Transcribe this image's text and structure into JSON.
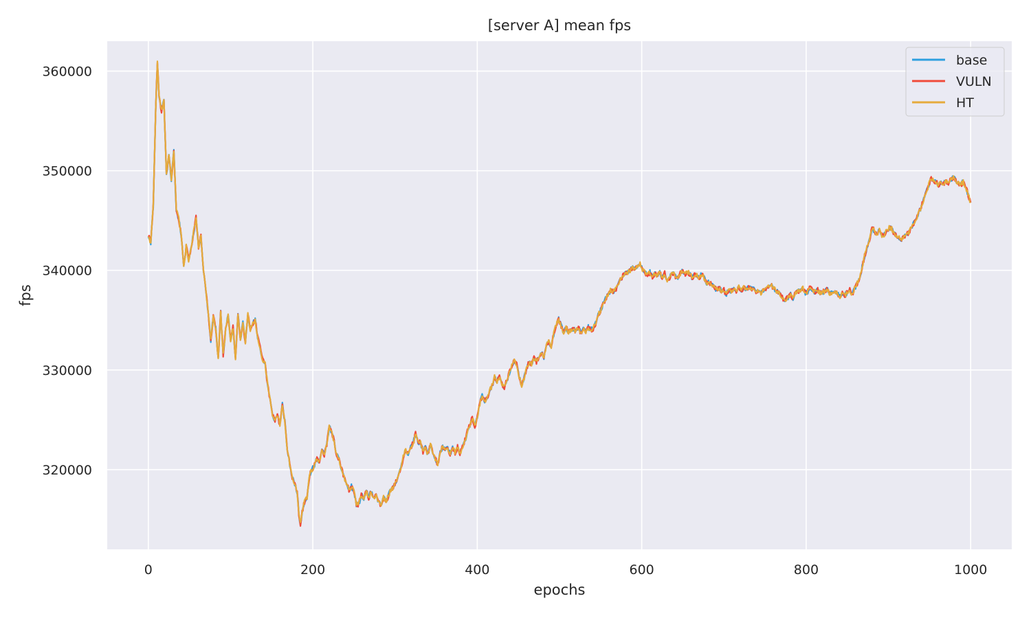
{
  "chart_data": {
    "type": "line",
    "title": "[server A] mean fps",
    "xlabel": "epochs",
    "ylabel": "fps",
    "xlim": [
      -50,
      1050
    ],
    "ylim": [
      312000,
      363000
    ],
    "x_ticks": [
      0,
      200,
      400,
      600,
      800,
      1000
    ],
    "y_ticks": [
      320000,
      330000,
      340000,
      350000,
      360000
    ],
    "grid": true,
    "legend_position": "top-right",
    "colors": {
      "background": "#eaeaf2",
      "grid": "#ffffff"
    },
    "series": [
      {
        "name": "base",
        "color": "#2e9fdf"
      },
      {
        "name": "VULN",
        "color": "#f04a3a"
      },
      {
        "name": "HT",
        "color": "#e5ab3c"
      }
    ],
    "anchor_points": [
      [
        0,
        343500
      ],
      [
        3,
        342800
      ],
      [
        6,
        346500
      ],
      [
        9,
        356500
      ],
      [
        11,
        360800
      ],
      [
        13,
        357500
      ],
      [
        16,
        356000
      ],
      [
        19,
        357200
      ],
      [
        22,
        349500
      ],
      [
        25,
        351800
      ],
      [
        28,
        349000
      ],
      [
        31,
        352000
      ],
      [
        34,
        346000
      ],
      [
        37,
        345200
      ],
      [
        40,
        343500
      ],
      [
        43,
        340200
      ],
      [
        46,
        342500
      ],
      [
        49,
        341000
      ],
      [
        52,
        342300
      ],
      [
        55,
        343800
      ],
      [
        58,
        345300
      ],
      [
        61,
        342400
      ],
      [
        64,
        343400
      ],
      [
        67,
        340000
      ],
      [
        70,
        338000
      ],
      [
        73,
        335500
      ],
      [
        76,
        333000
      ],
      [
        79,
        335300
      ],
      [
        82,
        334200
      ],
      [
        85,
        331000
      ],
      [
        88,
        335800
      ],
      [
        91,
        331500
      ],
      [
        94,
        334000
      ],
      [
        97,
        335500
      ],
      [
        100,
        333000
      ],
      [
        103,
        334300
      ],
      [
        106,
        331200
      ],
      [
        109,
        335600
      ],
      [
        112,
        333000
      ],
      [
        115,
        334800
      ],
      [
        118,
        332800
      ],
      [
        121,
        335800
      ],
      [
        124,
        334000
      ],
      [
        127,
        334700
      ],
      [
        130,
        335000
      ],
      [
        133,
        333300
      ],
      [
        136,
        332200
      ],
      [
        139,
        331000
      ],
      [
        142,
        330600
      ],
      [
        145,
        328500
      ],
      [
        148,
        327000
      ],
      [
        151,
        325400
      ],
      [
        154,
        325000
      ],
      [
        157,
        325500
      ],
      [
        160,
        324500
      ],
      [
        163,
        326500
      ],
      [
        166,
        324800
      ],
      [
        169,
        322000
      ],
      [
        172,
        320500
      ],
      [
        175,
        319200
      ],
      [
        178,
        318600
      ],
      [
        181,
        317800
      ],
      [
        183,
        315500
      ],
      [
        185,
        314500
      ],
      [
        187,
        315800
      ],
      [
        190,
        316800
      ],
      [
        193,
        317200
      ],
      [
        196,
        319400
      ],
      [
        199,
        320000
      ],
      [
        202,
        320400
      ],
      [
        205,
        321200
      ],
      [
        208,
        320800
      ],
      [
        211,
        322000
      ],
      [
        214,
        321500
      ],
      [
        217,
        322500
      ],
      [
        220,
        324300
      ],
      [
        223,
        323800
      ],
      [
        226,
        322800
      ],
      [
        229,
        321500
      ],
      [
        232,
        320900
      ],
      [
        235,
        320000
      ],
      [
        238,
        319300
      ],
      [
        241,
        318500
      ],
      [
        244,
        318000
      ],
      [
        247,
        318300
      ],
      [
        250,
        317800
      ],
      [
        253,
        316500
      ],
      [
        256,
        316500
      ],
      [
        259,
        317500
      ],
      [
        262,
        317000
      ],
      [
        265,
        317900
      ],
      [
        268,
        317200
      ],
      [
        271,
        317800
      ],
      [
        274,
        317000
      ],
      [
        277,
        317400
      ],
      [
        280,
        316800
      ],
      [
        283,
        316400
      ],
      [
        286,
        317200
      ],
      [
        289,
        316800
      ],
      [
        292,
        317400
      ],
      [
        295,
        318000
      ],
      [
        298,
        318200
      ],
      [
        301,
        318800
      ],
      [
        304,
        319500
      ],
      [
        307,
        320000
      ],
      [
        310,
        321300
      ],
      [
        313,
        322000
      ],
      [
        316,
        321600
      ],
      [
        319,
        322300
      ],
      [
        322,
        322600
      ],
      [
        325,
        323700
      ],
      [
        328,
        322800
      ],
      [
        331,
        322700
      ],
      [
        334,
        321800
      ],
      [
        337,
        322300
      ],
      [
        340,
        321500
      ],
      [
        343,
        322600
      ],
      [
        346,
        321700
      ],
      [
        349,
        321000
      ],
      [
        352,
        320600
      ],
      [
        355,
        321700
      ],
      [
        358,
        322300
      ],
      [
        361,
        321900
      ],
      [
        364,
        322200
      ],
      [
        367,
        321600
      ],
      [
        370,
        322200
      ],
      [
        373,
        321700
      ],
      [
        376,
        322300
      ],
      [
        379,
        321600
      ],
      [
        382,
        322200
      ],
      [
        385,
        322900
      ],
      [
        388,
        323800
      ],
      [
        391,
        324500
      ],
      [
        394,
        325200
      ],
      [
        397,
        324300
      ],
      [
        400,
        325200
      ],
      [
        403,
        326600
      ],
      [
        406,
        327400
      ],
      [
        409,
        326800
      ],
      [
        412,
        327200
      ],
      [
        415,
        328000
      ],
      [
        418,
        328400
      ],
      [
        421,
        329300
      ],
      [
        424,
        328800
      ],
      [
        427,
        329400
      ],
      [
        430,
        328600
      ],
      [
        433,
        328300
      ],
      [
        436,
        328900
      ],
      [
        439,
        329700
      ],
      [
        442,
        330500
      ],
      [
        445,
        331000
      ],
      [
        448,
        330500
      ],
      [
        451,
        329300
      ],
      [
        454,
        328400
      ],
      [
        457,
        329200
      ],
      [
        460,
        330200
      ],
      [
        463,
        330800
      ],
      [
        466,
        330600
      ],
      [
        469,
        331200
      ],
      [
        472,
        330800
      ],
      [
        475,
        331300
      ],
      [
        478,
        331800
      ],
      [
        481,
        331100
      ],
      [
        484,
        332400
      ],
      [
        487,
        332900
      ],
      [
        490,
        332400
      ],
      [
        493,
        333600
      ],
      [
        496,
        334600
      ],
      [
        499,
        335100
      ],
      [
        502,
        334400
      ],
      [
        505,
        333800
      ],
      [
        508,
        334200
      ],
      [
        511,
        333800
      ],
      [
        514,
        333900
      ],
      [
        517,
        334100
      ],
      [
        520,
        333900
      ],
      [
        523,
        334300
      ],
      [
        526,
        333700
      ],
      [
        529,
        334200
      ],
      [
        532,
        333800
      ],
      [
        535,
        334300
      ],
      [
        538,
        334000
      ],
      [
        541,
        334200
      ],
      [
        544,
        334700
      ],
      [
        547,
        335500
      ],
      [
        550,
        336000
      ],
      [
        553,
        336600
      ],
      [
        556,
        337100
      ],
      [
        559,
        337500
      ],
      [
        562,
        338000
      ],
      [
        565,
        337800
      ],
      [
        568,
        338100
      ],
      [
        571,
        338400
      ],
      [
        574,
        339000
      ],
      [
        577,
        339400
      ],
      [
        580,
        339700
      ],
      [
        583,
        339800
      ],
      [
        586,
        340000
      ],
      [
        589,
        340300
      ],
      [
        592,
        340100
      ],
      [
        595,
        340500
      ],
      [
        598,
        340700
      ],
      [
        601,
        340100
      ],
      [
        604,
        339800
      ],
      [
        607,
        339600
      ],
      [
        610,
        339800
      ],
      [
        613,
        339400
      ],
      [
        616,
        339600
      ],
      [
        619,
        339500
      ],
      [
        622,
        339800
      ],
      [
        625,
        339300
      ],
      [
        628,
        339700
      ],
      [
        631,
        339000
      ],
      [
        634,
        339200
      ],
      [
        637,
        339800
      ],
      [
        640,
        339500
      ],
      [
        643,
        339100
      ],
      [
        646,
        339600
      ],
      [
        649,
        339900
      ],
      [
        652,
        339600
      ],
      [
        655,
        339900
      ],
      [
        658,
        339700
      ],
      [
        661,
        339300
      ],
      [
        664,
        339500
      ],
      [
        667,
        339600
      ],
      [
        670,
        339200
      ],
      [
        673,
        339700
      ],
      [
        676,
        339200
      ],
      [
        679,
        338600
      ],
      [
        682,
        338900
      ],
      [
        685,
        338500
      ],
      [
        688,
        338400
      ],
      [
        691,
        338000
      ],
      [
        694,
        338200
      ],
      [
        697,
        337900
      ],
      [
        700,
        338000
      ],
      [
        703,
        337600
      ],
      [
        706,
        338100
      ],
      [
        709,
        337900
      ],
      [
        712,
        338200
      ],
      [
        715,
        337800
      ],
      [
        718,
        338300
      ],
      [
        721,
        337900
      ],
      [
        724,
        338300
      ],
      [
        727,
        338000
      ],
      [
        730,
        338400
      ],
      [
        733,
        338100
      ],
      [
        736,
        338300
      ],
      [
        739,
        337800
      ],
      [
        742,
        338100
      ],
      [
        745,
        337700
      ],
      [
        748,
        338000
      ],
      [
        751,
        338200
      ],
      [
        754,
        338400
      ],
      [
        757,
        338600
      ],
      [
        760,
        338200
      ],
      [
        763,
        338000
      ],
      [
        766,
        337800
      ],
      [
        769,
        337500
      ],
      [
        772,
        337200
      ],
      [
        775,
        337000
      ],
      [
        778,
        337300
      ],
      [
        781,
        337600
      ],
      [
        784,
        337200
      ],
      [
        787,
        337700
      ],
      [
        790,
        337900
      ],
      [
        793,
        338000
      ],
      [
        796,
        338200
      ],
      [
        799,
        337700
      ],
      [
        802,
        337900
      ],
      [
        805,
        338300
      ],
      [
        808,
        338000
      ],
      [
        811,
        337800
      ],
      [
        814,
        338000
      ],
      [
        817,
        337700
      ],
      [
        820,
        337800
      ],
      [
        823,
        337900
      ],
      [
        826,
        338100
      ],
      [
        829,
        337600
      ],
      [
        832,
        337800
      ],
      [
        835,
        337900
      ],
      [
        838,
        337600
      ],
      [
        841,
        337400
      ],
      [
        844,
        337700
      ],
      [
        847,
        337500
      ],
      [
        850,
        337800
      ],
      [
        853,
        338000
      ],
      [
        856,
        337600
      ],
      [
        859,
        338200
      ],
      [
        862,
        338700
      ],
      [
        865,
        339300
      ],
      [
        868,
        340300
      ],
      [
        871,
        341400
      ],
      [
        874,
        342300
      ],
      [
        877,
        343000
      ],
      [
        880,
        344200
      ],
      [
        883,
        344000
      ],
      [
        886,
        343600
      ],
      [
        889,
        344100
      ],
      [
        892,
        343500
      ],
      [
        895,
        343600
      ],
      [
        898,
        344000
      ],
      [
        901,
        344300
      ],
      [
        904,
        344200
      ],
      [
        907,
        343600
      ],
      [
        910,
        343500
      ],
      [
        913,
        343300
      ],
      [
        916,
        343100
      ],
      [
        919,
        343300
      ],
      [
        922,
        343600
      ],
      [
        925,
        343800
      ],
      [
        928,
        344300
      ],
      [
        931,
        344700
      ],
      [
        934,
        345100
      ],
      [
        937,
        345800
      ],
      [
        940,
        346400
      ],
      [
        943,
        347100
      ],
      [
        946,
        347800
      ],
      [
        949,
        348600
      ],
      [
        952,
        349200
      ],
      [
        955,
        349100
      ],
      [
        958,
        348800
      ],
      [
        961,
        348600
      ],
      [
        964,
        348900
      ],
      [
        967,
        348700
      ],
      [
        970,
        348900
      ],
      [
        973,
        348800
      ],
      [
        976,
        349100
      ],
      [
        979,
        349300
      ],
      [
        982,
        349000
      ],
      [
        985,
        348700
      ],
      [
        988,
        348600
      ],
      [
        991,
        348900
      ],
      [
        994,
        348400
      ],
      [
        997,
        347600
      ],
      [
        1000,
        346800
      ]
    ]
  }
}
